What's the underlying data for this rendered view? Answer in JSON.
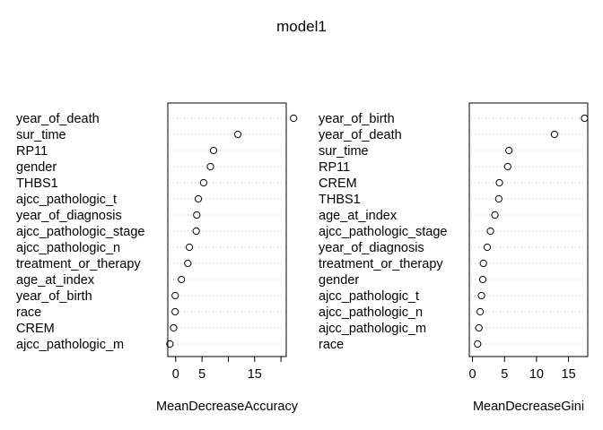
{
  "title": "model1",
  "chart_data": [
    {
      "type": "scatter",
      "xlabel": "MeanDecreaseAccuracy",
      "xlim": [
        -1.5,
        21
      ],
      "xticks": [
        0,
        5,
        10,
        15,
        20
      ],
      "xtick_labels": [
        "0",
        "5",
        "",
        "15",
        ""
      ],
      "grid": "dotted horizontal guide lines",
      "categories": [
        "year_of_death",
        "sur_time",
        "RP11",
        "gender",
        "THBS1",
        "ajcc_pathologic_t",
        "year_of_diagnosis",
        "ajcc_pathologic_stage",
        "ajcc_pathologic_n",
        "treatment_or_therapy",
        "age_at_index",
        "year_of_birth",
        "race",
        "CREM",
        "ajcc_pathologic_m"
      ],
      "values": [
        22.4,
        11.8,
        7.2,
        6.6,
        5.3,
        4.3,
        4.0,
        3.9,
        2.6,
        2.3,
        1.1,
        -0.1,
        -0.1,
        -0.4,
        -1.1
      ]
    },
    {
      "type": "scatter",
      "xlabel": "MeanDecreaseGini",
      "xlim": [
        -0.5,
        18
      ],
      "xticks": [
        0,
        5,
        10,
        15
      ],
      "xtick_labels": [
        "0",
        "5",
        "10",
        "15"
      ],
      "grid": "dotted horizontal guide lines",
      "categories": [
        "year_of_birth",
        "year_of_death",
        "sur_time",
        "RP11",
        "CREM",
        "THBS1",
        "age_at_index",
        "ajcc_pathologic_stage",
        "year_of_diagnosis",
        "treatment_or_therapy",
        "gender",
        "ajcc_pathologic_t",
        "ajcc_pathologic_n",
        "ajcc_pathologic_m",
        "race"
      ],
      "values": [
        17.5,
        12.8,
        5.7,
        5.5,
        4.2,
        4.1,
        3.5,
        2.8,
        2.3,
        1.7,
        1.6,
        1.4,
        1.2,
        1.0,
        0.8
      ]
    }
  ]
}
